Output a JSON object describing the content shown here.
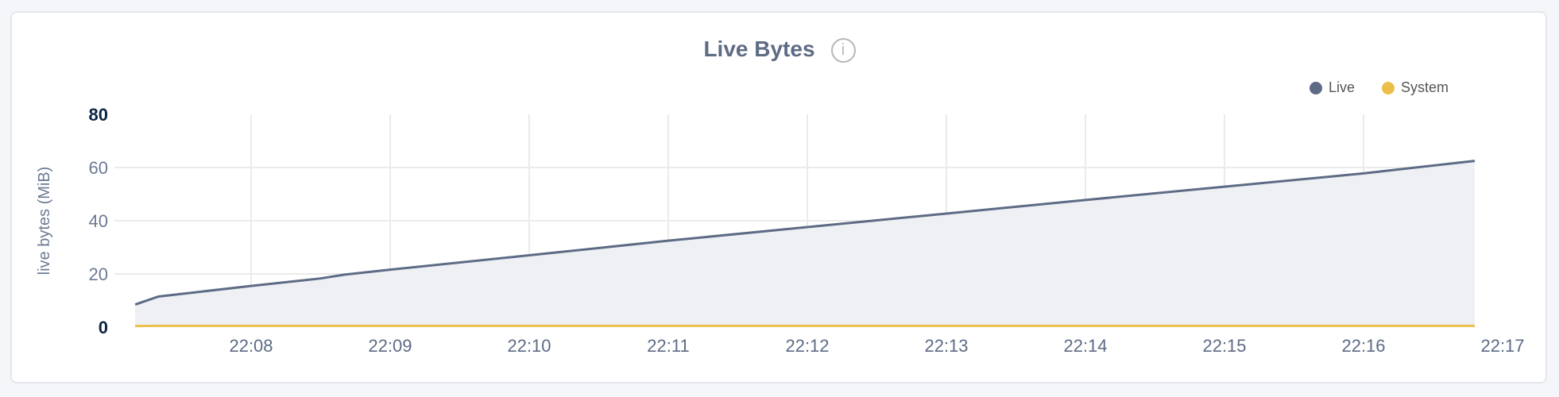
{
  "chart_data": {
    "type": "area",
    "title": "Live Bytes",
    "ylabel": "live bytes (MiB)",
    "xlabel": "",
    "ylim": [
      0,
      80
    ],
    "yticks": [
      "0",
      "20",
      "40",
      "60",
      "80"
    ],
    "xticks": [
      "22:08",
      "22:09",
      "22:10",
      "22:11",
      "22:12",
      "22:13",
      "22:14",
      "22:15",
      "22:16",
      "22:17"
    ],
    "xlim": [
      "22:07:10",
      "22:16:48"
    ],
    "grid": true,
    "legend_position": "top-right",
    "x": [
      "22:07:10",
      "22:07:20",
      "22:08:00",
      "22:08:30",
      "22:08:40",
      "22:09:00",
      "22:10:00",
      "22:11:00",
      "22:12:00",
      "22:13:00",
      "22:14:00",
      "22:15:00",
      "22:16:00",
      "22:16:48"
    ],
    "series": [
      {
        "name": "Live",
        "color": "#5d6b85",
        "values": [
          8.5,
          11.5,
          15.5,
          18.3,
          19.7,
          21.6,
          27.0,
          32.5,
          37.6,
          42.7,
          47.8,
          52.8,
          57.8,
          62.5
        ]
      },
      {
        "name": "System",
        "color": "#ebbf4a",
        "values": [
          0.4,
          0.5,
          0.5,
          0.5,
          0.5,
          0.5,
          0.5,
          0.5,
          0.5,
          0.5,
          0.5,
          0.5,
          0.5,
          0.5
        ]
      }
    ]
  },
  "info_icon": "info-circle-icon"
}
